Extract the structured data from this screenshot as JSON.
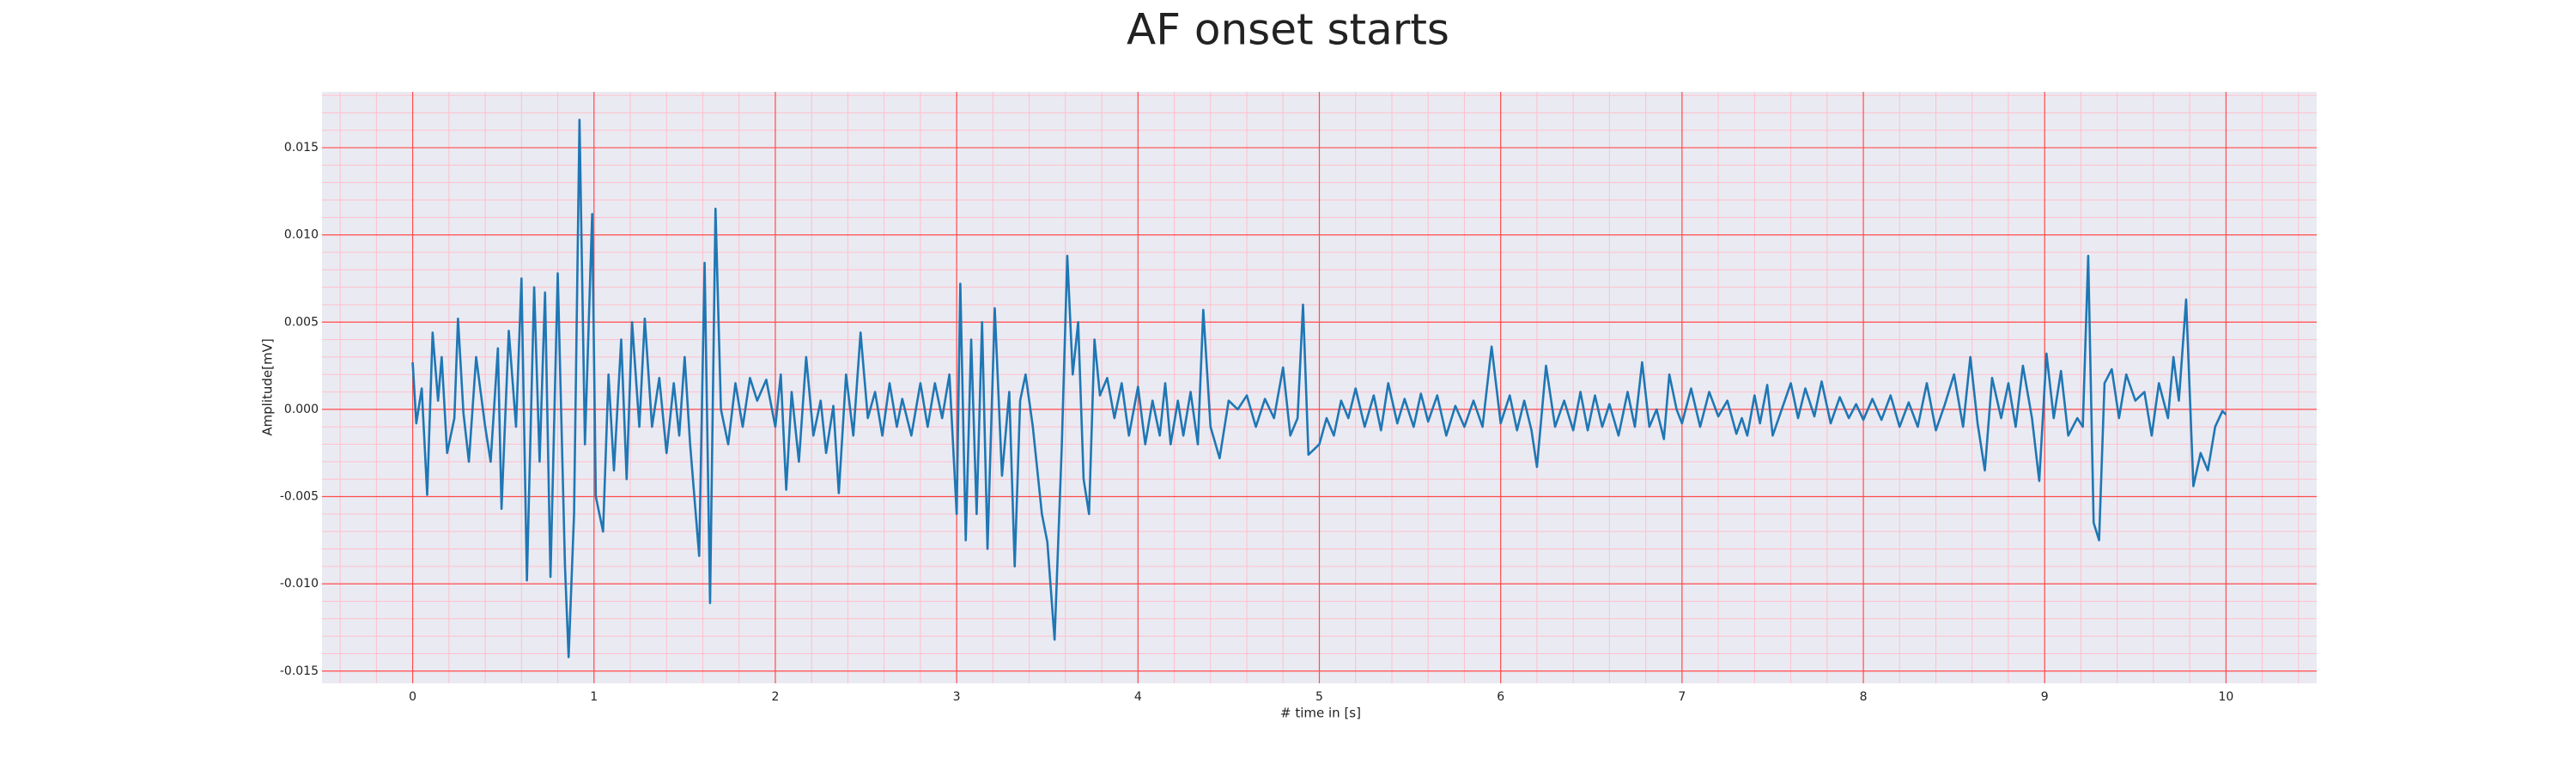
{
  "chart_data": {
    "type": "line",
    "title": "AF onset starts",
    "xlabel": "# time in [s]",
    "ylabel": "Amplitude[mV]",
    "color": "#1f77b4",
    "grid": true,
    "minor_grid": true,
    "xlim": [
      -0.5,
      10.5
    ],
    "xticks": [
      0,
      1,
      2,
      3,
      4,
      5,
      6,
      7,
      8,
      9,
      10
    ],
    "ylim": [
      -0.0157,
      0.0182
    ],
    "yticks": [
      -0.015,
      {
        "value": -0.01,
        "label": "-0.010"
      },
      -0.005,
      {
        "value": 0,
        "label": "0.000"
      },
      0.005,
      {
        "value": 0.01,
        "label": "0.010"
      },
      0.015
    ],
    "x": [
      0.0,
      0.02,
      0.05,
      0.08,
      0.11,
      0.14,
      0.16,
      0.19,
      0.23,
      0.25,
      0.28,
      0.31,
      0.35,
      0.4,
      0.43,
      0.47,
      0.49,
      0.53,
      0.57,
      0.6,
      0.63,
      0.67,
      0.7,
      0.73,
      0.76,
      0.8,
      0.84,
      0.86,
      0.89,
      0.92,
      0.95,
      0.99,
      1.01,
      1.05,
      1.08,
      1.11,
      1.15,
      1.18,
      1.21,
      1.25,
      1.28,
      1.32,
      1.36,
      1.4,
      1.44,
      1.47,
      1.5,
      1.53,
      1.58,
      1.61,
      1.64,
      1.67,
      1.7,
      1.74,
      1.78,
      1.82,
      1.86,
      1.9,
      1.95,
      2.0,
      2.03,
      2.06,
      2.09,
      2.13,
      2.17,
      2.21,
      2.25,
      2.28,
      2.32,
      2.35,
      2.39,
      2.43,
      2.47,
      2.51,
      2.55,
      2.59,
      2.63,
      2.67,
      2.7,
      2.75,
      2.8,
      2.84,
      2.88,
      2.92,
      2.96,
      3.0,
      3.02,
      3.05,
      3.08,
      3.11,
      3.14,
      3.17,
      3.21,
      3.25,
      3.29,
      3.32,
      3.35,
      3.38,
      3.42,
      3.47,
      3.5,
      3.54,
      3.58,
      3.61,
      3.64,
      3.67,
      3.7,
      3.73,
      3.76,
      3.79,
      3.83,
      3.87,
      3.91,
      3.95,
      4.0,
      4.04,
      4.08,
      4.12,
      4.15,
      4.18,
      4.22,
      4.25,
      4.29,
      4.33,
      4.36,
      4.4,
      4.45,
      4.5,
      4.55,
      4.6,
      4.65,
      4.7,
      4.75,
      4.8,
      4.84,
      4.88,
      4.91,
      4.94,
      5.0,
      5.04,
      5.08,
      5.12,
      5.16,
      5.2,
      5.25,
      5.3,
      5.34,
      5.38,
      5.43,
      5.47,
      5.52,
      5.56,
      5.6,
      5.65,
      5.7,
      5.75,
      5.8,
      5.85,
      5.9,
      5.95,
      6.0,
      6.05,
      6.09,
      6.13,
      6.17,
      6.2,
      6.25,
      6.3,
      6.35,
      6.4,
      6.44,
      6.48,
      6.52,
      6.56,
      6.6,
      6.65,
      6.7,
      6.74,
      6.78,
      6.82,
      6.86,
      6.9,
      6.93,
      6.97,
      7.0,
      7.05,
      7.1,
      7.15,
      7.2,
      7.25,
      7.3,
      7.33,
      7.36,
      7.4,
      7.43,
      7.47,
      7.5,
      7.55,
      7.6,
      7.64,
      7.68,
      7.73,
      7.77,
      7.82,
      7.87,
      7.92,
      7.96,
      8.0,
      8.05,
      8.1,
      8.15,
      8.2,
      8.25,
      8.3,
      8.35,
      8.4,
      8.45,
      8.5,
      8.55,
      8.59,
      8.63,
      8.67,
      8.71,
      8.76,
      8.8,
      8.84,
      8.88,
      8.93,
      8.97,
      9.01,
      9.05,
      9.09,
      9.13,
      9.18,
      9.21,
      9.24,
      9.27,
      9.3,
      9.33,
      9.37,
      9.41,
      9.45,
      9.5,
      9.55,
      9.59,
      9.63,
      9.68,
      9.71,
      9.74,
      9.78,
      9.82,
      9.86,
      9.9,
      9.94,
      9.98,
      10.0
    ],
    "values": [
      0.0027,
      -0.0008,
      0.0012,
      -0.0049,
      0.0044,
      0.0005,
      0.003,
      -0.0025,
      -0.0005,
      0.0052,
      -0.0002,
      -0.003,
      0.003,
      -0.001,
      -0.003,
      0.0035,
      -0.0057,
      0.0045,
      -0.001,
      0.0075,
      -0.0098,
      0.007,
      -0.003,
      0.0067,
      -0.0096,
      0.0078,
      -0.009,
      -0.0142,
      -0.006,
      0.0166,
      -0.002,
      0.0112,
      -0.005,
      -0.007,
      0.002,
      -0.0035,
      0.004,
      -0.004,
      0.005,
      -0.001,
      0.0052,
      -0.001,
      0.0018,
      -0.0025,
      0.0015,
      -0.0015,
      0.003,
      -0.002,
      -0.0084,
      0.0084,
      -0.0111,
      0.0115,
      0.0,
      -0.002,
      0.0015,
      -0.001,
      0.0018,
      0.0005,
      0.0017,
      -0.001,
      0.002,
      -0.0046,
      0.001,
      -0.003,
      0.003,
      -0.0015,
      0.0005,
      -0.0025,
      0.0002,
      -0.0048,
      0.002,
      -0.0015,
      0.0044,
      -0.0005,
      0.001,
      -0.0015,
      0.0015,
      -0.001,
      0.0006,
      -0.0015,
      0.0015,
      -0.001,
      0.0015,
      -0.0005,
      0.002,
      -0.006,
      0.0072,
      -0.0075,
      0.004,
      -0.006,
      0.005,
      -0.008,
      0.0058,
      -0.0038,
      0.001,
      -0.009,
      0.0005,
      0.002,
      -0.001,
      -0.006,
      -0.0076,
      -0.0132,
      -0.002,
      0.0088,
      0.002,
      0.005,
      -0.004,
      -0.006,
      0.004,
      0.0008,
      0.0018,
      -0.0005,
      0.0015,
      -0.0015,
      0.0013,
      -0.002,
      0.0005,
      -0.0015,
      0.0015,
      -0.002,
      0.0005,
      -0.0015,
      0.001,
      -0.002,
      0.0057,
      -0.001,
      -0.0028,
      0.0005,
      0.0,
      0.0008,
      -0.001,
      0.0006,
      -0.0005,
      0.0024,
      -0.0015,
      -0.0005,
      0.006,
      -0.0026,
      -0.002,
      -0.0005,
      -0.0015,
      0.0005,
      -0.0005,
      0.0012,
      -0.001,
      0.0008,
      -0.0012,
      0.0015,
      -0.0008,
      0.0006,
      -0.001,
      0.0009,
      -0.0007,
      0.0008,
      -0.0015,
      0.0002,
      -0.001,
      0.0005,
      -0.001,
      0.0036,
      -0.0008,
      0.0008,
      -0.0012,
      0.0005,
      -0.0012,
      -0.0033,
      0.0025,
      -0.001,
      0.0005,
      -0.0012,
      0.001,
      -0.0012,
      0.0008,
      -0.001,
      0.0003,
      -0.0015,
      0.001,
      -0.001,
      0.0027,
      -0.001,
      0.0,
      -0.0017,
      0.002,
      0.0,
      -0.0008,
      0.0012,
      -0.001,
      0.001,
      -0.0004,
      0.0005,
      -0.0014,
      -0.0005,
      -0.0015,
      0.0008,
      -0.0008,
      0.0014,
      -0.0015,
      0.0,
      0.0015,
      -0.0005,
      0.0012,
      -0.0004,
      0.0016,
      -0.0008,
      0.0007,
      -0.0005,
      0.0003,
      -0.0006,
      0.0006,
      -0.0006,
      0.0008,
      -0.001,
      0.0004,
      -0.001,
      0.0015,
      -0.0012,
      0.0003,
      0.002,
      -0.001,
      0.003,
      -0.0008,
      -0.0035,
      0.0018,
      -0.0005,
      0.0015,
      -0.001,
      0.0025,
      -0.0005,
      -0.0041,
      0.0032,
      -0.0005,
      0.0022,
      -0.0015,
      -0.0005,
      -0.001,
      0.0088,
      -0.0065,
      -0.0075,
      0.0015,
      0.0023,
      -0.0005,
      0.002,
      0.0005,
      0.001,
      -0.0015,
      0.0015,
      -0.0005,
      0.003,
      0.0005,
      0.0063,
      -0.0044,
      -0.0025,
      -0.0035,
      -0.001,
      -0.0001,
      -0.0003
    ]
  }
}
